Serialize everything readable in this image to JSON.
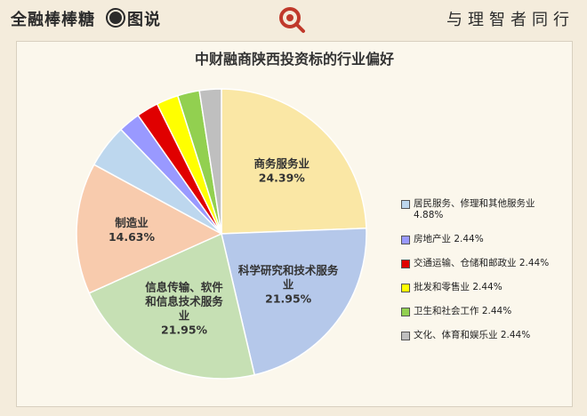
{
  "header": {
    "brand": "全融棒棒糖",
    "section": "图说",
    "slogan": "与理智者同行"
  },
  "chart_data": {
    "type": "pie",
    "title": "中财融商陕西投资标的行业偏好",
    "slices": [
      {
        "name": "商务服务业",
        "value": 24.39,
        "color": "#fae7a5",
        "label": "商务服务业\n24.39%"
      },
      {
        "name": "科学研究和技术服务业",
        "value": 21.95,
        "color": "#b5c8ea",
        "label": "科学研究和技术服务\n业\n21.95%"
      },
      {
        "name": "信息传输、软件和信息技术服务业",
        "value": 21.95,
        "color": "#c6e0b4",
        "label": "信息传输、软件\n和信息技术服务\n业\n21.95%"
      },
      {
        "name": "制造业",
        "value": 14.63,
        "color": "#f8cbad",
        "label": "制造业\n14.63%"
      },
      {
        "name": "居民服务、修理和其他服务业",
        "value": 4.88,
        "color": "#bdd7ee",
        "label": ""
      },
      {
        "name": "房地产业",
        "value": 2.44,
        "color": "#9999ff",
        "label": ""
      },
      {
        "name": "交通运输、仓储和邮政业",
        "value": 2.44,
        "color": "#e00000",
        "label": ""
      },
      {
        "name": "批发和零售业",
        "value": 2.44,
        "color": "#ffff00",
        "label": ""
      },
      {
        "name": "卫生和社会工作",
        "value": 2.44,
        "color": "#92d050",
        "label": ""
      },
      {
        "name": "文化、体育和娱乐业",
        "value": 2.44,
        "color": "#bfbfbf",
        "label": ""
      }
    ],
    "legend": [
      {
        "text": "居民服务、修理和其他服务业\n4.88%",
        "color": "#bdd7ee"
      },
      {
        "text": "房地产业 2.44%",
        "color": "#9999ff"
      },
      {
        "text": "交通运输、仓储和邮政业 2.44%",
        "color": "#e00000"
      },
      {
        "text": "批发和零售业 2.44%",
        "color": "#ffff00"
      },
      {
        "text": "卫生和社会工作 2.44%",
        "color": "#92d050"
      },
      {
        "text": "文化、体育和娱乐业 2.44%",
        "color": "#bfbfbf"
      }
    ],
    "legend_position": "right"
  }
}
